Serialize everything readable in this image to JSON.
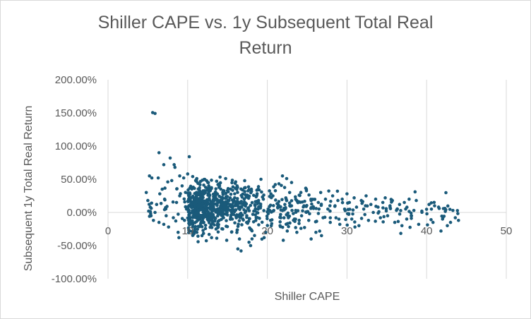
{
  "chart_data": {
    "type": "scatter",
    "title": "Shiller CAPE vs. 1y Subsequent Total Real Return",
    "xlabel": "Shiller CAPE",
    "ylabel": "Subsequent 1y Total Real Return",
    "xlim": [
      0,
      50
    ],
    "ylim": [
      -100,
      200
    ],
    "x_ticks": [
      "0",
      "10",
      "20",
      "30",
      "40",
      "50"
    ],
    "y_ticks": [
      "200.00%",
      "150.00%",
      "100.00%",
      "50.00%",
      "0.00%",
      "-50.00%",
      "-100.00%"
    ],
    "grid": "vertical gridlines only",
    "marker_color": "#1a5a7a",
    "series": [
      {
        "points": [
          [
            5.6,
            150.5
          ],
          [
            5.9,
            149.2
          ],
          [
            6.4,
            90
          ],
          [
            7.0,
            72
          ],
          [
            7.8,
            82
          ],
          [
            8.3,
            72
          ],
          [
            8.4,
            68
          ],
          [
            10.2,
            84
          ],
          [
            10.0,
            58
          ],
          [
            9.0,
            55
          ],
          [
            5.2,
            55
          ],
          [
            5.5,
            52
          ],
          [
            6.3,
            52
          ],
          [
            7.5,
            46
          ],
          [
            8.0,
            48
          ],
          [
            9.5,
            52
          ],
          [
            4.8,
            30
          ],
          [
            5.0,
            18
          ],
          [
            5.3,
            8
          ],
          [
            5.1,
            2
          ],
          [
            5.4,
            -5
          ],
          [
            5.7,
            -12
          ],
          [
            5.9,
            0
          ],
          [
            6.1,
            12
          ],
          [
            6.5,
            28
          ],
          [
            6.8,
            35
          ],
          [
            7.1,
            20
          ],
          [
            7.3,
            -5
          ],
          [
            7.6,
            -22
          ],
          [
            7.0,
            -18
          ],
          [
            6.4,
            -15
          ],
          [
            8.2,
            -8
          ],
          [
            8.6,
            15
          ],
          [
            9.0,
            25
          ],
          [
            9.3,
            40
          ],
          [
            8.8,
            -30
          ],
          [
            9.6,
            -12
          ],
          [
            10.1,
            2
          ],
          [
            10.4,
            22
          ],
          [
            10.7,
            38
          ],
          [
            11.0,
            48
          ],
          [
            11.3,
            5
          ],
          [
            11.6,
            -20
          ],
          [
            11.8,
            -35
          ],
          [
            12.2,
            30
          ],
          [
            12.6,
            45
          ],
          [
            12.9,
            10
          ],
          [
            13.2,
            -5
          ],
          [
            13.5,
            25
          ],
          [
            13.8,
            42
          ],
          [
            14.1,
            18
          ],
          [
            14.4,
            -25
          ],
          [
            14.7,
            3
          ],
          [
            15.0,
            33
          ],
          [
            15.3,
            12
          ],
          [
            15.6,
            -10
          ],
          [
            15.9,
            28
          ],
          [
            16.2,
            40
          ],
          [
            16.5,
            -40
          ],
          [
            16.8,
            8
          ],
          [
            17.1,
            20
          ],
          [
            17.4,
            -15
          ],
          [
            17.7,
            -45
          ],
          [
            18.0,
            35
          ],
          [
            18.3,
            2
          ],
          [
            18.6,
            -8
          ],
          [
            18.9,
            15
          ],
          [
            19.2,
            50
          ],
          [
            19.5,
            20
          ],
          [
            19.8,
            -30
          ],
          [
            20.1,
            5
          ],
          [
            20.4,
            -12
          ],
          [
            20.7,
            25
          ],
          [
            21.0,
            42
          ],
          [
            21.3,
            8
          ],
          [
            21.6,
            -20
          ],
          [
            21.9,
            55
          ],
          [
            22.2,
            12
          ],
          [
            22.5,
            -28
          ],
          [
            22.8,
            30
          ],
          [
            23.1,
            3
          ],
          [
            23.4,
            -10
          ],
          [
            23.7,
            18
          ],
          [
            24.0,
            26
          ],
          [
            24.3,
            -5
          ],
          [
            24.6,
            10
          ],
          [
            24.9,
            35
          ],
          [
            25.2,
            -12
          ],
          [
            25.5,
            18
          ],
          [
            25.8,
            6
          ],
          [
            26.1,
            -30
          ],
          [
            26.4,
            15
          ],
          [
            26.7,
            30
          ],
          [
            27.0,
            -8
          ],
          [
            27.3,
            20
          ],
          [
            27.6,
            5
          ],
          [
            27.9,
            -15
          ],
          [
            28.2,
            25
          ],
          [
            28.5,
            10
          ],
          [
            28.8,
            32
          ],
          [
            29.1,
            -18
          ],
          [
            29.4,
            20
          ],
          [
            29.7,
            5
          ],
          [
            30.0,
            28
          ],
          [
            30.3,
            15
          ],
          [
            30.6,
            -10
          ],
          [
            30.9,
            22
          ],
          [
            31.2,
            8
          ],
          [
            31.5,
            -20
          ],
          [
            31.8,
            18
          ],
          [
            32.1,
            5
          ],
          [
            32.4,
            25
          ],
          [
            32.7,
            -12
          ],
          [
            33.0,
            12
          ],
          [
            33.3,
            0
          ],
          [
            33.6,
            20
          ],
          [
            33.9,
            8
          ],
          [
            34.2,
            -8
          ],
          [
            34.5,
            15
          ],
          [
            34.8,
            22
          ],
          [
            35.1,
            -5
          ],
          [
            35.4,
            10
          ],
          [
            35.7,
            18
          ],
          [
            36.0,
            -15
          ],
          [
            36.3,
            5
          ],
          [
            36.6,
            12
          ],
          [
            36.9,
            -20
          ],
          [
            37.2,
            15
          ],
          [
            37.5,
            -10
          ],
          [
            37.8,
            20
          ],
          [
            38.1,
            -5
          ],
          [
            38.4,
            3
          ],
          [
            38.7,
            18
          ],
          [
            39.0,
            -18
          ],
          [
            40.3,
            12
          ],
          [
            40.6,
            5
          ],
          [
            41.0,
            10
          ],
          [
            41.5,
            8
          ],
          [
            42.0,
            -10
          ],
          [
            42.3,
            6
          ],
          [
            42.6,
            -20
          ],
          [
            43.0,
            -15
          ],
          [
            43.3,
            3
          ],
          [
            43.6,
            -8
          ],
          [
            44.0,
            -12
          ],
          [
            41.8,
            -28
          ],
          [
            40.8,
            -15
          ],
          [
            39.4,
            2
          ],
          [
            31.0,
            -22
          ],
          [
            26.8,
            -35
          ],
          [
            16.3,
            -55
          ],
          [
            16.7,
            -58
          ],
          [
            17.9,
            -50
          ],
          [
            13.0,
            -38
          ],
          [
            10.8,
            -32
          ],
          [
            8.9,
            -38
          ],
          [
            25.5,
            -40
          ],
          [
            22.0,
            -42
          ],
          [
            19.6,
            -38
          ],
          [
            14.9,
            -42
          ]
        ]
      }
    ]
  }
}
